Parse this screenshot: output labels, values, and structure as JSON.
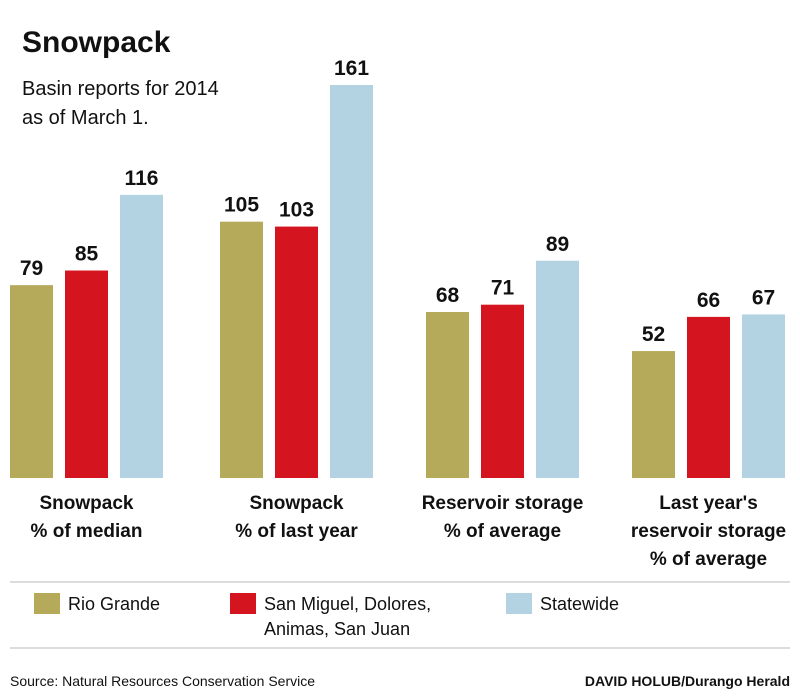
{
  "chart_data": {
    "type": "bar",
    "title": "Snowpack",
    "subtitle": [
      "Basin reports for 2014",
      "as of March 1."
    ],
    "categories": [
      [
        "Snowpack",
        "% of median"
      ],
      [
        "Snowpack",
        "% of last year"
      ],
      [
        "Reservoir storage",
        "% of average"
      ],
      [
        "Last year's",
        "reservoir storage",
        "% of average"
      ]
    ],
    "series": [
      {
        "name": "Rio Grande",
        "label_lines": [
          "Rio Grande"
        ],
        "color": "#b5a95a",
        "values": [
          79,
          105,
          68,
          52
        ]
      },
      {
        "name": "San Miguel, Dolores, Animas, San Juan",
        "label_lines": [
          "San Miguel, Dolores,",
          "Animas, San Juan"
        ],
        "color": "#d4141e",
        "values": [
          85,
          103,
          71,
          66
        ]
      },
      {
        "name": "Statewide",
        "label_lines": [
          "Statewide"
        ],
        "color": "#b3d3e3",
        "values": [
          116,
          161,
          89,
          67
        ]
      }
    ],
    "ylim": [
      0,
      161
    ],
    "grid": false,
    "legend_position": "bottom"
  },
  "footer": {
    "source": "Source: Natural Resources Conservation Service",
    "credit": "DAVID HOLUB/Durango Herald"
  }
}
